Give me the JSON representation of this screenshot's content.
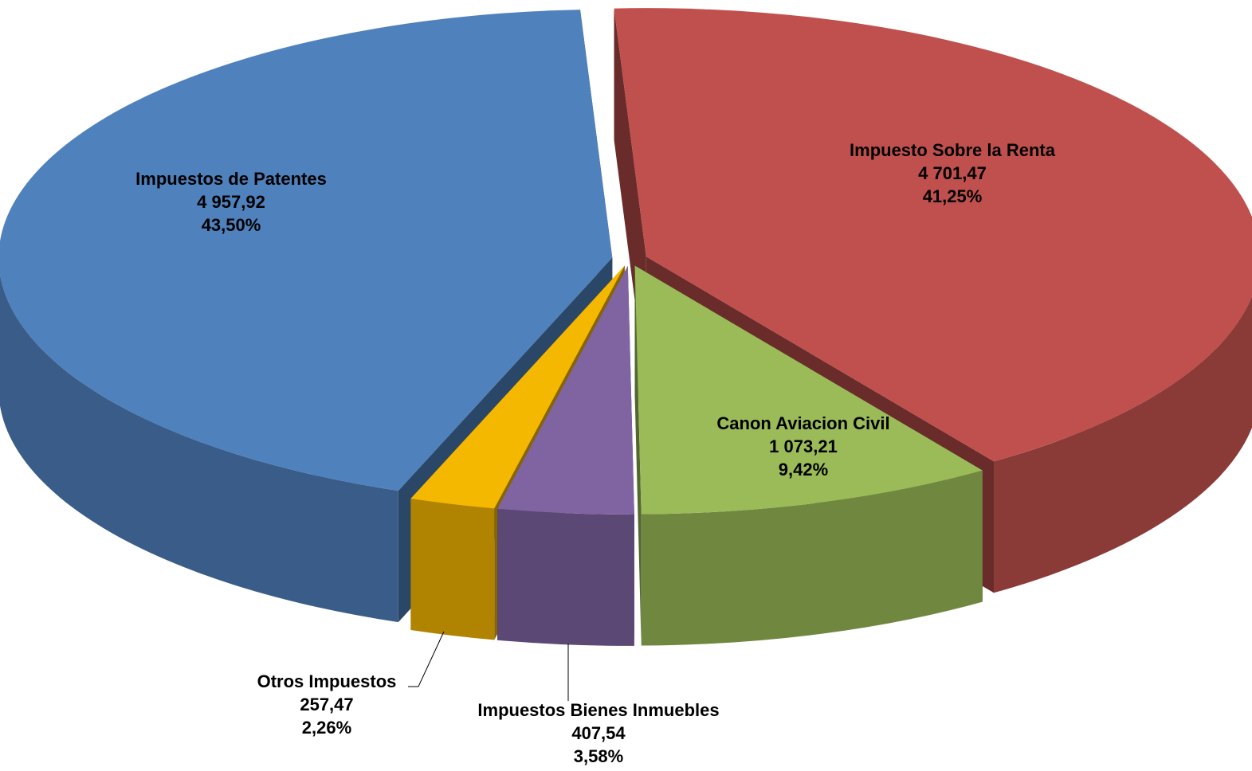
{
  "chart_data": {
    "type": "pie",
    "categories": [
      "Impuesto Sobre la Renta",
      "Canon Aviacion Civil",
      "Impuestos Bienes Inmuebles",
      "Otros Impuestos",
      "Impuestos de Patentes"
    ],
    "values": [
      4701.47,
      1073.21,
      407.54,
      257.47,
      4957.92
    ],
    "value_labels": [
      "4 701,47",
      "1 073,21",
      "407,54",
      "257,47",
      "4 957,92"
    ],
    "percentages": [
      41.25,
      9.42,
      3.58,
      2.26,
      43.5
    ],
    "percentage_labels": [
      "41,25%",
      "9,42%",
      "3,58%",
      "2,26%",
      "43,50%"
    ],
    "colors": [
      "#c0504d",
      "#9bbb59",
      "#8064a2",
      "#f5b800",
      "#4f81bd"
    ]
  }
}
